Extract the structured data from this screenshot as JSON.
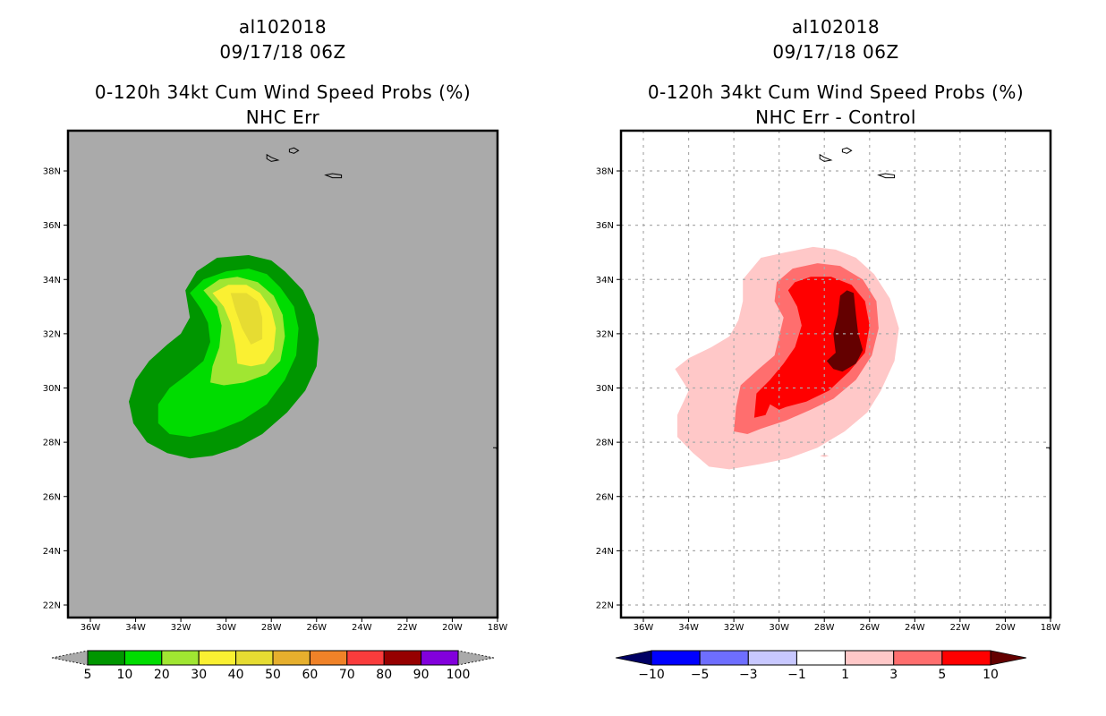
{
  "chart_data": [
    {
      "type": "heatmap",
      "subtype": "filled-contour-map",
      "title_lines": [
        "al102018",
        "09/17/18 06Z"
      ],
      "title": "0-120h 34kt Cum Wind Speed Probs (%)",
      "subtitle": "NHC Err",
      "background": "#aaaaaa",
      "grid": false,
      "xlabel": "",
      "ylabel": "",
      "xlim": [
        -37,
        -18
      ],
      "ylim": [
        21.5,
        39.5
      ],
      "x_ticks": [
        "36W",
        "34W",
        "32W",
        "30W",
        "28W",
        "26W",
        "24W",
        "22W",
        "20W",
        "18W"
      ],
      "y_ticks": [
        "38N",
        "36N",
        "34N",
        "32N",
        "30N",
        "28N",
        "26N",
        "24N",
        "22N"
      ],
      "colorbar": {
        "levels": [
          "5",
          "10",
          "20",
          "30",
          "40",
          "50",
          "60",
          "70",
          "80",
          "90",
          "100"
        ],
        "colors": [
          "#009600",
          "#00dc00",
          "#a0e632",
          "#faf032",
          "#e6dc32",
          "#e6af2d",
          "#f08228",
          "#fa3c3c",
          "#960000",
          "#8200dc"
        ],
        "under_color": "#aaaaaa",
        "over_color": "#aaaaaa"
      },
      "contours": [
        {
          "level": "5-10",
          "color": "#009600",
          "polygon": [
            [
              -31.8,
              33.6
            ],
            [
              -31.3,
              34.3
            ],
            [
              -30.4,
              34.8
            ],
            [
              -29.0,
              34.9
            ],
            [
              -28.0,
              34.7
            ],
            [
              -27.4,
              34.3
            ],
            [
              -26.6,
              33.6
            ],
            [
              -26.1,
              32.7
            ],
            [
              -25.9,
              31.8
            ],
            [
              -26.0,
              30.8
            ],
            [
              -26.5,
              29.9
            ],
            [
              -27.3,
              29.1
            ],
            [
              -28.4,
              28.3
            ],
            [
              -29.5,
              27.8
            ],
            [
              -30.6,
              27.5
            ],
            [
              -31.6,
              27.4
            ],
            [
              -32.6,
              27.6
            ],
            [
              -33.5,
              28.0
            ],
            [
              -34.1,
              28.7
            ],
            [
              -34.3,
              29.5
            ],
            [
              -34.0,
              30.3
            ],
            [
              -33.4,
              31.0
            ],
            [
              -32.6,
              31.6
            ],
            [
              -32.0,
              32.0
            ],
            [
              -31.6,
              32.6
            ],
            [
              -31.8,
              33.6
            ]
          ]
        },
        {
          "level": "10-20",
          "color": "#00dc00",
          "polygon": [
            [
              -31.6,
              33.5
            ],
            [
              -31.0,
              34.0
            ],
            [
              -30.0,
              34.3
            ],
            [
              -29.0,
              34.4
            ],
            [
              -28.2,
              34.2
            ],
            [
              -27.6,
              33.7
            ],
            [
              -27.0,
              33.0
            ],
            [
              -26.8,
              32.2
            ],
            [
              -26.9,
              31.2
            ],
            [
              -27.4,
              30.3
            ],
            [
              -28.2,
              29.4
            ],
            [
              -29.3,
              28.8
            ],
            [
              -30.5,
              28.4
            ],
            [
              -31.6,
              28.2
            ],
            [
              -32.5,
              28.3
            ],
            [
              -33.0,
              28.7
            ],
            [
              -33.0,
              29.4
            ],
            [
              -32.5,
              30.0
            ],
            [
              -31.7,
              30.5
            ],
            [
              -31.0,
              31.0
            ],
            [
              -30.7,
              31.7
            ],
            [
              -30.8,
              32.4
            ],
            [
              -31.1,
              32.9
            ],
            [
              -31.6,
              33.5
            ]
          ]
        },
        {
          "level": "20-30",
          "color": "#a0e632",
          "polygon": [
            [
              -31.0,
              33.6
            ],
            [
              -30.3,
              34.0
            ],
            [
              -29.5,
              34.1
            ],
            [
              -28.6,
              33.9
            ],
            [
              -27.9,
              33.4
            ],
            [
              -27.5,
              32.7
            ],
            [
              -27.4,
              31.9
            ],
            [
              -27.6,
              31.0
            ],
            [
              -28.2,
              30.5
            ],
            [
              -29.2,
              30.2
            ],
            [
              -30.1,
              30.1
            ],
            [
              -30.7,
              30.2
            ],
            [
              -30.6,
              30.8
            ],
            [
              -30.3,
              31.5
            ],
            [
              -30.2,
              32.3
            ],
            [
              -30.4,
              33.0
            ],
            [
              -31.0,
              33.6
            ]
          ]
        },
        {
          "level": "30-40",
          "color": "#faf032",
          "polygon": [
            [
              -30.6,
              33.5
            ],
            [
              -29.9,
              33.8
            ],
            [
              -29.1,
              33.8
            ],
            [
              -28.5,
              33.5
            ],
            [
              -28.0,
              32.9
            ],
            [
              -27.8,
              32.2
            ],
            [
              -27.9,
              31.4
            ],
            [
              -28.3,
              30.9
            ],
            [
              -28.9,
              30.8
            ],
            [
              -29.5,
              30.9
            ],
            [
              -29.6,
              31.6
            ],
            [
              -29.8,
              32.4
            ],
            [
              -30.1,
              33.0
            ],
            [
              -30.6,
              33.5
            ]
          ]
        },
        {
          "level": "40-50",
          "color": "#e6dc32",
          "polygon": [
            [
              -29.8,
              33.5
            ],
            [
              -29.1,
              33.5
            ],
            [
              -28.6,
              33.2
            ],
            [
              -28.4,
              32.6
            ],
            [
              -28.4,
              31.8
            ],
            [
              -28.9,
              31.6
            ],
            [
              -29.3,
              32.2
            ],
            [
              -29.6,
              32.9
            ],
            [
              -29.8,
              33.5
            ]
          ]
        }
      ],
      "land_outlines": [
        [
          [
            -28.2,
            38.6
          ],
          [
            -28.0,
            38.5
          ],
          [
            -27.7,
            38.4
          ],
          [
            -28.0,
            38.35
          ],
          [
            -28.2,
            38.45
          ],
          [
            -28.2,
            38.6
          ]
        ],
        [
          [
            -27.2,
            38.8
          ],
          [
            -27.0,
            38.85
          ],
          [
            -26.8,
            38.75
          ],
          [
            -27.0,
            38.65
          ],
          [
            -27.2,
            38.7
          ],
          [
            -27.2,
            38.8
          ]
        ],
        [
          [
            -25.6,
            37.85
          ],
          [
            -25.3,
            37.75
          ],
          [
            -24.9,
            37.75
          ],
          [
            -24.9,
            37.85
          ],
          [
            -25.3,
            37.9
          ],
          [
            -25.6,
            37.85
          ]
        ]
      ]
    },
    {
      "type": "heatmap",
      "subtype": "filled-contour-map",
      "title_lines": [
        "al102018",
        "09/17/18 06Z"
      ],
      "title": "0-120h 34kt Cum Wind Speed Probs (%)",
      "subtitle": "NHC Err - Control",
      "background": "#ffffff",
      "grid": true,
      "xlabel": "",
      "ylabel": "",
      "xlim": [
        -37,
        -18
      ],
      "ylim": [
        21.5,
        39.5
      ],
      "x_ticks": [
        "36W",
        "34W",
        "32W",
        "30W",
        "28W",
        "26W",
        "24W",
        "22W",
        "20W",
        "18W"
      ],
      "y_ticks": [
        "38N",
        "36N",
        "34N",
        "32N",
        "30N",
        "28N",
        "26N",
        "24N",
        "22N"
      ],
      "colorbar": {
        "levels": [
          "-10",
          "-5",
          "-3",
          "-1",
          "1",
          "3",
          "5",
          "10"
        ],
        "colors": [
          "#0000ff",
          "#6e6eff",
          "#c8c8ff",
          "#ffffff",
          "#ffc8c8",
          "#ff6e6e",
          "#ff0000"
        ],
        "under_color": "#000064",
        "over_color": "#640000"
      },
      "contours": [
        {
          "level": "1-3",
          "color": "#ffc8c8",
          "polygon": [
            [
              -31.6,
              34.0
            ],
            [
              -30.8,
              34.8
            ],
            [
              -29.7,
              35.0
            ],
            [
              -28.5,
              35.2
            ],
            [
              -27.5,
              35.1
            ],
            [
              -26.6,
              34.8
            ],
            [
              -25.8,
              34.2
            ],
            [
              -25.1,
              33.3
            ],
            [
              -24.7,
              32.2
            ],
            [
              -24.9,
              31.0
            ],
            [
              -25.5,
              29.9
            ],
            [
              -26.1,
              29.1
            ],
            [
              -27.1,
              28.4
            ],
            [
              -28.3,
              27.8
            ],
            [
              -29.6,
              27.4
            ],
            [
              -30.8,
              27.2
            ],
            [
              -32.2,
              27.0
            ],
            [
              -33.1,
              27.1
            ],
            [
              -33.8,
              27.6
            ],
            [
              -34.5,
              28.2
            ],
            [
              -34.5,
              29.0
            ],
            [
              -34.0,
              29.9
            ],
            [
              -34.6,
              30.7
            ],
            [
              -34.0,
              31.1
            ],
            [
              -33.0,
              31.5
            ],
            [
              -32.2,
              31.9
            ],
            [
              -31.8,
              32.5
            ],
            [
              -31.6,
              33.2
            ],
            [
              -31.6,
              34.0
            ]
          ]
        },
        {
          "level": "3-5",
          "color": "#ff6e6e",
          "polygon": [
            [
              -30.1,
              33.9
            ],
            [
              -29.4,
              34.4
            ],
            [
              -28.3,
              34.6
            ],
            [
              -27.3,
              34.5
            ],
            [
              -26.3,
              34.0
            ],
            [
              -25.7,
              33.2
            ],
            [
              -25.6,
              32.2
            ],
            [
              -25.9,
              31.2
            ],
            [
              -26.6,
              30.3
            ],
            [
              -27.6,
              29.6
            ],
            [
              -28.6,
              29.2
            ],
            [
              -29.7,
              28.8
            ],
            [
              -30.8,
              28.5
            ],
            [
              -31.4,
              28.3
            ],
            [
              -32.0,
              28.4
            ],
            [
              -31.9,
              29.3
            ],
            [
              -31.7,
              30.1
            ],
            [
              -30.9,
              30.7
            ],
            [
              -30.2,
              31.2
            ],
            [
              -30.0,
              31.9
            ],
            [
              -29.8,
              32.6
            ],
            [
              -30.2,
              33.2
            ],
            [
              -30.1,
              33.9
            ]
          ]
        },
        {
          "level": "5-10",
          "color": "#ff0000",
          "polygon": [
            [
              -29.6,
              33.6
            ],
            [
              -29.3,
              33.9
            ],
            [
              -28.6,
              34.1
            ],
            [
              -27.7,
              34.1
            ],
            [
              -26.8,
              33.8
            ],
            [
              -26.2,
              33.2
            ],
            [
              -26.0,
              32.3
            ],
            [
              -26.2,
              31.3
            ],
            [
              -26.9,
              30.6
            ],
            [
              -27.8,
              29.9
            ],
            [
              -28.8,
              29.5
            ],
            [
              -29.7,
              29.3
            ],
            [
              -30.0,
              29.2
            ],
            [
              -30.4,
              29.4
            ],
            [
              -30.6,
              29.0
            ],
            [
              -31.1,
              28.9
            ],
            [
              -31.0,
              29.8
            ],
            [
              -30.4,
              30.3
            ],
            [
              -29.8,
              30.9
            ],
            [
              -29.3,
              31.5
            ],
            [
              -29.0,
              32.3
            ],
            [
              -29.2,
              33.0
            ],
            [
              -29.6,
              33.6
            ]
          ]
        },
        {
          "level": ">10",
          "color": "#640000",
          "polygon": [
            [
              -27.3,
              33.4
            ],
            [
              -27.0,
              33.6
            ],
            [
              -26.7,
              33.5
            ],
            [
              -26.6,
              32.7
            ],
            [
              -26.5,
              32.0
            ],
            [
              -26.3,
              31.4
            ],
            [
              -26.6,
              30.9
            ],
            [
              -27.2,
              30.6
            ],
            [
              -27.6,
              30.7
            ],
            [
              -27.9,
              31.0
            ],
            [
              -27.5,
              31.3
            ],
            [
              -27.6,
              32.0
            ],
            [
              -27.4,
              32.7
            ],
            [
              -27.3,
              33.4
            ]
          ]
        },
        {
          "level": "1-3",
          "color": "#ffc8c8",
          "polygon": [
            [
              -28.2,
              27.5
            ],
            [
              -28.0,
              27.55
            ],
            [
              -27.8,
              27.5
            ],
            [
              -28.0,
              27.45
            ],
            [
              -28.2,
              27.5
            ]
          ]
        }
      ],
      "land_outlines": [
        [
          [
            -28.2,
            38.6
          ],
          [
            -28.0,
            38.5
          ],
          [
            -27.7,
            38.4
          ],
          [
            -28.0,
            38.35
          ],
          [
            -28.2,
            38.45
          ],
          [
            -28.2,
            38.6
          ]
        ],
        [
          [
            -27.2,
            38.8
          ],
          [
            -27.0,
            38.85
          ],
          [
            -26.8,
            38.75
          ],
          [
            -27.0,
            38.65
          ],
          [
            -27.2,
            38.7
          ],
          [
            -27.2,
            38.8
          ]
        ],
        [
          [
            -25.6,
            37.85
          ],
          [
            -25.3,
            37.75
          ],
          [
            -24.9,
            37.75
          ],
          [
            -24.9,
            37.85
          ],
          [
            -25.3,
            37.9
          ],
          [
            -25.6,
            37.85
          ]
        ]
      ]
    }
  ]
}
